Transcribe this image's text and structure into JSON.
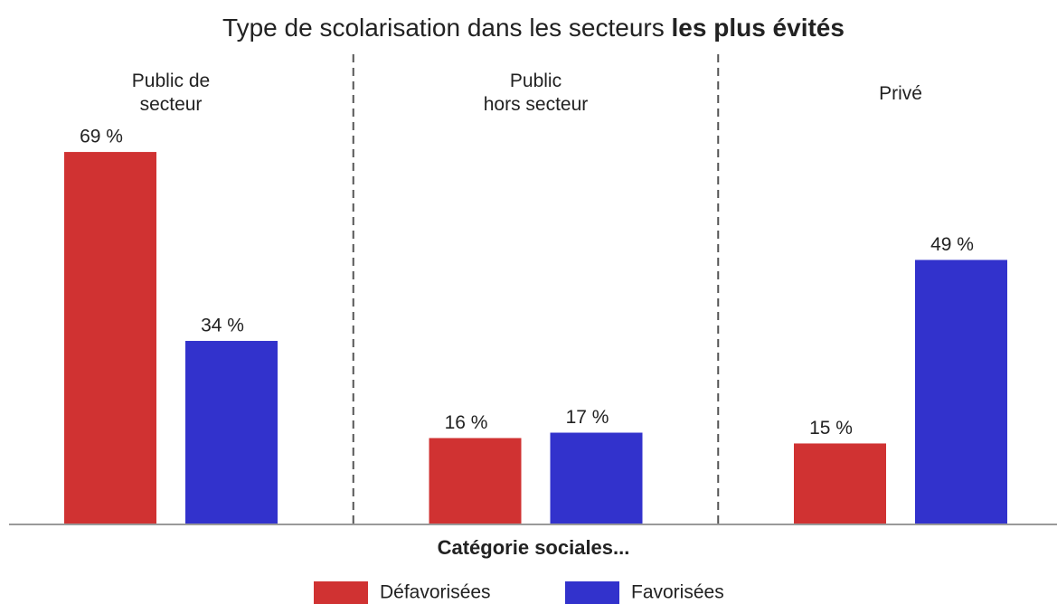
{
  "chart_data": {
    "type": "bar",
    "title_parts": [
      "Type de scolarisation dans les secteurs",
      "les plus évités"
    ],
    "categories": [
      [
        "Public de",
        "secteur"
      ],
      [
        "Public",
        "hors secteur"
      ],
      [
        "Privé"
      ]
    ],
    "series": [
      {
        "name": "Défavorisées",
        "color": "#d03232",
        "values": [
          69,
          16,
          15
        ],
        "value_labels": [
          "69 %",
          "16 %",
          "15 %"
        ]
      },
      {
        "name": "Favorisées",
        "color": "#3232cc",
        "values": [
          34,
          17,
          49
        ],
        "value_labels": [
          "34 %",
          "17 %",
          "49 %"
        ]
      }
    ],
    "legend_title": "Catégorie sociales...",
    "ylim": [
      0,
      70
    ]
  }
}
